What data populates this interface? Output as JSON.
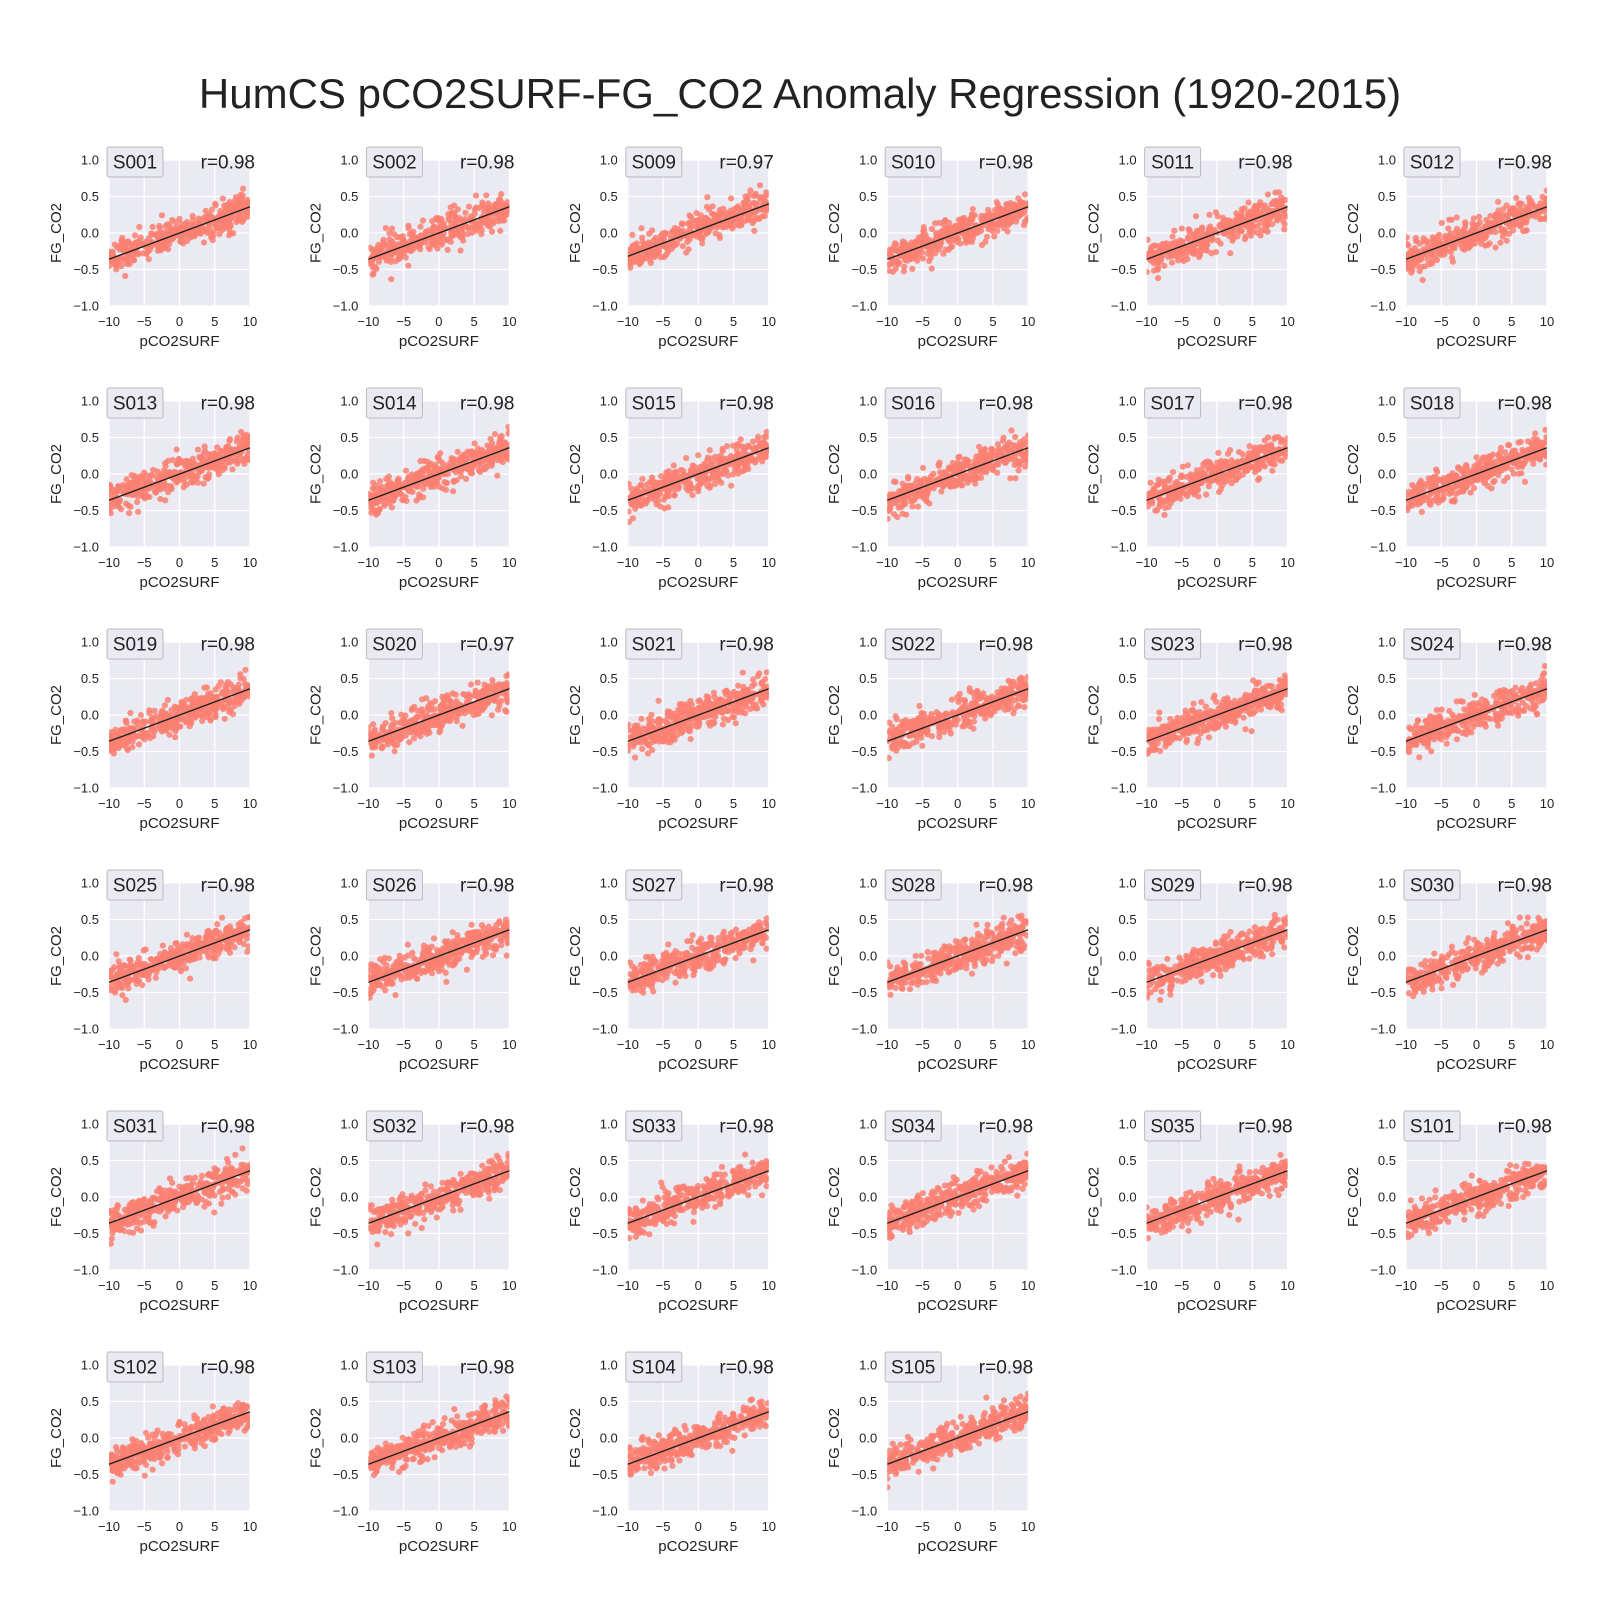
{
  "figure": {
    "title": "HumCS pCO2SURF-FG_CO2 Anomaly Regression (1920-2015)"
  },
  "colors": {
    "panel_background": "#eaeaf2",
    "grid": "#ffffff",
    "points": "#fa8072",
    "regression_line": "#222222",
    "text": "#222222",
    "label_box_background": "#eaeaf2",
    "label_box_border": "#bbbbbb"
  },
  "chart_data": {
    "type": "scatter",
    "layout": "small multiples, 6 columns x 6 rows",
    "xlabel": "pCO2SURF",
    "ylabel": "FG_CO2",
    "xlim": [
      -10,
      10
    ],
    "ylim": [
      -1.0,
      1.0
    ],
    "xticks": [
      "−10",
      "−5",
      "0",
      "5",
      "10"
    ],
    "yticks": [
      "−1.0",
      "−0.5",
      "0.0",
      "0.5",
      "1.0"
    ],
    "grid": true,
    "annotation_format": "r=",
    "panels": [
      {
        "name": "S001",
        "r": "r=0.98",
        "slope": 0.036,
        "intercept": 0.0
      },
      {
        "name": "S002",
        "r": "r=0.98",
        "slope": 0.036,
        "intercept": 0.0
      },
      {
        "name": "S009",
        "r": "r=0.97",
        "slope": 0.036,
        "intercept": 0.04
      },
      {
        "name": "S010",
        "r": "r=0.98",
        "slope": 0.036,
        "intercept": 0.0
      },
      {
        "name": "S011",
        "r": "r=0.98",
        "slope": 0.036,
        "intercept": 0.0
      },
      {
        "name": "S012",
        "r": "r=0.98",
        "slope": 0.036,
        "intercept": 0.0
      },
      {
        "name": "S013",
        "r": "r=0.98",
        "slope": 0.036,
        "intercept": 0.0
      },
      {
        "name": "S014",
        "r": "r=0.98",
        "slope": 0.036,
        "intercept": 0.0
      },
      {
        "name": "S015",
        "r": "r=0.98",
        "slope": 0.036,
        "intercept": 0.0
      },
      {
        "name": "S016",
        "r": "r=0.98",
        "slope": 0.036,
        "intercept": 0.0
      },
      {
        "name": "S017",
        "r": "r=0.98",
        "slope": 0.036,
        "intercept": 0.0
      },
      {
        "name": "S018",
        "r": "r=0.98",
        "slope": 0.036,
        "intercept": 0.0
      },
      {
        "name": "S019",
        "r": "r=0.98",
        "slope": 0.036,
        "intercept": 0.0
      },
      {
        "name": "S020",
        "r": "r=0.97",
        "slope": 0.036,
        "intercept": 0.0
      },
      {
        "name": "S021",
        "r": "r=0.98",
        "slope": 0.036,
        "intercept": 0.0
      },
      {
        "name": "S022",
        "r": "r=0.98",
        "slope": 0.036,
        "intercept": 0.0
      },
      {
        "name": "S023",
        "r": "r=0.98",
        "slope": 0.036,
        "intercept": 0.0
      },
      {
        "name": "S024",
        "r": "r=0.98",
        "slope": 0.036,
        "intercept": 0.0
      },
      {
        "name": "S025",
        "r": "r=0.98",
        "slope": 0.036,
        "intercept": 0.0
      },
      {
        "name": "S026",
        "r": "r=0.98",
        "slope": 0.036,
        "intercept": 0.0
      },
      {
        "name": "S027",
        "r": "r=0.98",
        "slope": 0.036,
        "intercept": 0.0
      },
      {
        "name": "S028",
        "r": "r=0.98",
        "slope": 0.036,
        "intercept": 0.0
      },
      {
        "name": "S029",
        "r": "r=0.98",
        "slope": 0.036,
        "intercept": 0.0
      },
      {
        "name": "S030",
        "r": "r=0.98",
        "slope": 0.036,
        "intercept": 0.0
      },
      {
        "name": "S031",
        "r": "r=0.98",
        "slope": 0.036,
        "intercept": 0.0
      },
      {
        "name": "S032",
        "r": "r=0.98",
        "slope": 0.036,
        "intercept": 0.0
      },
      {
        "name": "S033",
        "r": "r=0.98",
        "slope": 0.036,
        "intercept": 0.0
      },
      {
        "name": "S034",
        "r": "r=0.98",
        "slope": 0.036,
        "intercept": 0.0
      },
      {
        "name": "S035",
        "r": "r=0.98",
        "slope": 0.036,
        "intercept": 0.0
      },
      {
        "name": "S101",
        "r": "r=0.98",
        "slope": 0.036,
        "intercept": 0.0
      },
      {
        "name": "S102",
        "r": "r=0.98",
        "slope": 0.036,
        "intercept": 0.0
      },
      {
        "name": "S103",
        "r": "r=0.98",
        "slope": 0.036,
        "intercept": 0.0
      },
      {
        "name": "S104",
        "r": "r=0.98",
        "slope": 0.036,
        "intercept": 0.0
      },
      {
        "name": "S105",
        "r": "r=0.98",
        "slope": 0.036,
        "intercept": 0.0
      }
    ]
  }
}
